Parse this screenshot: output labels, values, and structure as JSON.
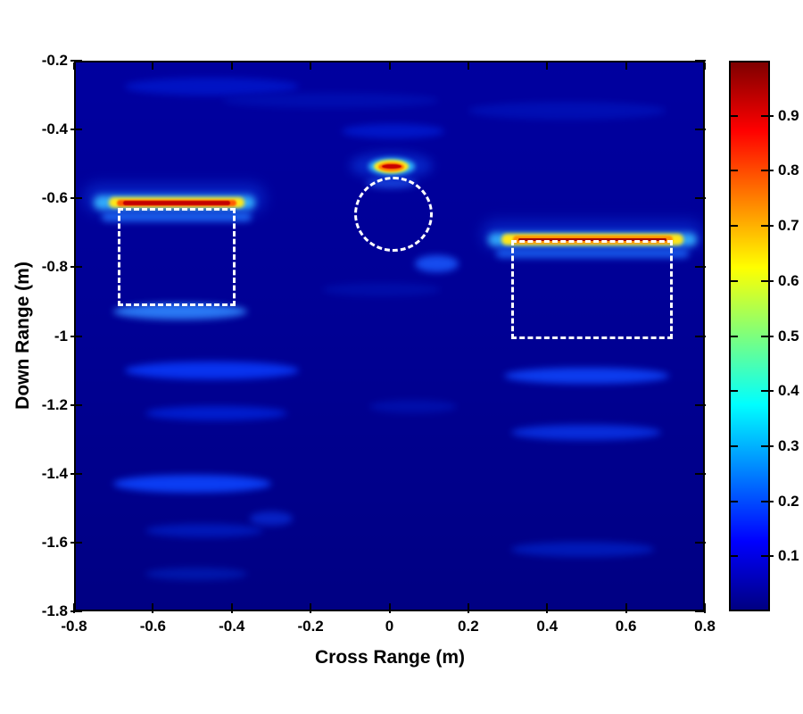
{
  "chart_data": {
    "type": "heatmap",
    "title": "",
    "xlabel": "Cross Range (m)",
    "ylabel": "Down Range (m)",
    "xlim": [
      -0.8,
      0.8
    ],
    "ylim": [
      -1.8,
      -0.2
    ],
    "grid": false,
    "background_color": "#000097",
    "x_ticks": {
      "values": [
        -0.8,
        -0.6,
        -0.4,
        -0.2,
        0,
        0.2,
        0.4,
        0.6,
        0.8
      ],
      "labels": [
        "-0.8",
        "-0.6",
        "-0.4",
        "-0.2",
        "0",
        "0.2",
        "0.4",
        "0.6",
        "0.8"
      ]
    },
    "y_ticks": {
      "values": [
        -0.2,
        -0.4,
        -0.6,
        -0.8,
        -1,
        -1.2,
        -1.4,
        -1.6,
        -1.8
      ],
      "labels": [
        "-0.2",
        "-0.4",
        "-0.6",
        "-0.8",
        "-1",
        "-1.2",
        "-1.4",
        "-1.6",
        "-1.8"
      ]
    },
    "colorbar": {
      "min": 0,
      "max": 1,
      "colormap": "jet",
      "tick_values": [
        0.9,
        0.8,
        0.7,
        0.6,
        0.5,
        0.4,
        0.3,
        0.2,
        0.1
      ],
      "tick_labels": [
        "0.9",
        "0.8",
        "0.7",
        "0.6",
        "0.5",
        "0.4",
        "0.3",
        "0.2",
        "0.1"
      ],
      "gradient_stops": [
        "#7f0000 0%",
        "#ff0000 12.5%",
        "#ff8000 25%",
        "#ffff00 37.5%",
        "#7dff7d 50%",
        "#00ffff 62.5%",
        "#0080ff 75%",
        "#0000ff 87.5%",
        "#000082 100%"
      ]
    },
    "targets": [
      {
        "name": "left-plate-return",
        "x_extent": [
          -0.72,
          -0.37
        ],
        "y": -0.61,
        "peak_intensity": 1.0
      },
      {
        "name": "center-point-return",
        "x": 0.0,
        "y": -0.51,
        "peak_intensity": 1.0
      },
      {
        "name": "right-plate-return",
        "x_extent": [
          0.27,
          0.76
        ],
        "y": -0.72,
        "peak_intensity": 0.95
      }
    ],
    "overlays": [
      {
        "shape": "rect",
        "name": "ground-truth-left-rect",
        "x0": -0.69,
        "x1": -0.39,
        "y0": -0.628,
        "y1": -0.912
      },
      {
        "shape": "circle",
        "name": "ground-truth-center-circle",
        "cx": 0.01,
        "cy": -0.645,
        "rx": 0.1,
        "ry": 0.109
      },
      {
        "shape": "rect",
        "name": "ground-truth-right-rect",
        "x0": 0.31,
        "x1": 0.718,
        "y0": -0.72,
        "y1": -1.01
      }
    ],
    "hot_layers": [
      {
        "x": -0.545,
        "y": -0.6,
        "w": 0.46,
        "h": 0.082,
        "c": "#0a35d8",
        "blur": 8,
        "o": 0.65,
        "pill": true
      },
      {
        "x": -0.545,
        "y": -0.613,
        "w": 0.41,
        "h": 0.042,
        "c": "#35b4ff",
        "blur": 4,
        "o": 0.95,
        "pill": true
      },
      {
        "x": -0.54,
        "y": -0.613,
        "w": 0.345,
        "h": 0.03,
        "c": "#ffe718",
        "blur": 2,
        "o": 1,
        "pill": true
      },
      {
        "x": -0.54,
        "y": -0.6135,
        "w": 0.305,
        "h": 0.019,
        "c": "#ff5a00",
        "blur": 1,
        "o": 1,
        "pill": true
      },
      {
        "x": -0.54,
        "y": -0.6135,
        "w": 0.272,
        "h": 0.0125,
        "c": "#c40000",
        "blur": 0.4,
        "o": 1,
        "pill": true
      },
      {
        "x": -0.54,
        "y": -0.655,
        "w": 0.38,
        "h": 0.026,
        "c": "#2277ff",
        "blur": 4,
        "o": 0.85,
        "pill": true
      },
      {
        "x": 0.005,
        "y": -0.505,
        "w": 0.21,
        "h": 0.075,
        "c": "#0a35d8",
        "blur": 6,
        "o": 0.7
      },
      {
        "x": 0.005,
        "y": -0.508,
        "w": 0.118,
        "h": 0.05,
        "c": "#35c8ff",
        "blur": 3,
        "o": 0.95
      },
      {
        "x": 0.005,
        "y": -0.508,
        "w": 0.088,
        "h": 0.038,
        "c": "#ffe718",
        "blur": 1.5,
        "o": 1
      },
      {
        "x": 0.005,
        "y": -0.508,
        "w": 0.066,
        "h": 0.026,
        "c": "#ff7700",
        "blur": 1,
        "o": 1
      },
      {
        "x": 0.005,
        "y": -0.5075,
        "w": 0.05,
        "h": 0.015,
        "c": "#c80000",
        "blur": 0.4,
        "o": 1
      },
      {
        "x": 0.515,
        "y": -0.705,
        "w": 0.56,
        "h": 0.082,
        "c": "#0a35d8",
        "blur": 8,
        "o": 0.6,
        "pill": true
      },
      {
        "x": 0.515,
        "y": -0.72,
        "w": 0.53,
        "h": 0.04,
        "c": "#35b4ff",
        "blur": 4,
        "o": 0.9,
        "pill": true
      },
      {
        "x": 0.515,
        "y": -0.72,
        "w": 0.46,
        "h": 0.033,
        "c": "#ffe718",
        "blur": 2,
        "o": 1,
        "pill": true
      },
      {
        "x": 0.515,
        "y": -0.72,
        "w": 0.405,
        "h": 0.021,
        "c": "#ff9100",
        "blur": 1,
        "o": 1,
        "pill": true
      },
      {
        "x": 0.515,
        "y": -0.7205,
        "w": 0.375,
        "h": 0.0085,
        "c": "#a50000",
        "blur": 0.3,
        "o": 1,
        "pill": true
      },
      {
        "x": 0.515,
        "y": -0.76,
        "w": 0.49,
        "h": 0.028,
        "c": "#1e6fff",
        "blur": 4,
        "o": 0.8,
        "pill": true
      }
    ],
    "noise_bands": [
      {
        "x": -0.45,
        "y": -0.275,
        "w": 0.44,
        "h": 0.05,
        "c": "#0015c8",
        "o": 0.9
      },
      {
        "x": -0.15,
        "y": -0.315,
        "w": 0.55,
        "h": 0.045,
        "c": "#0010b4",
        "o": 0.8
      },
      {
        "x": 0.45,
        "y": -0.345,
        "w": 0.5,
        "h": 0.05,
        "c": "#0013bb",
        "o": 0.75
      },
      {
        "x": 0.01,
        "y": -0.405,
        "w": 0.26,
        "h": 0.042,
        "c": "#001ad0",
        "o": 0.85
      },
      {
        "x": 0.005,
        "y": -0.555,
        "w": 0.13,
        "h": 0.032,
        "c": "#1e50e8",
        "o": 0.8
      },
      {
        "x": -0.53,
        "y": -0.928,
        "w": 0.34,
        "h": 0.046,
        "c": "#2f86ff",
        "o": 0.9
      },
      {
        "x": -0.45,
        "y": -1.1,
        "w": 0.44,
        "h": 0.052,
        "c": "#0a3cff",
        "o": 0.85
      },
      {
        "x": -0.44,
        "y": -1.225,
        "w": 0.36,
        "h": 0.042,
        "c": "#0024dd",
        "o": 0.8
      },
      {
        "x": -0.5,
        "y": -1.43,
        "w": 0.4,
        "h": 0.052,
        "c": "#0d44ff",
        "o": 0.9
      },
      {
        "x": -0.47,
        "y": -1.565,
        "w": 0.3,
        "h": 0.04,
        "c": "#0022cc",
        "o": 0.7
      },
      {
        "x": -0.49,
        "y": -1.69,
        "w": 0.26,
        "h": 0.036,
        "c": "#0020bb",
        "o": 0.7
      },
      {
        "x": 0.5,
        "y": -1.115,
        "w": 0.42,
        "h": 0.048,
        "c": "#0f47ff",
        "o": 0.85
      },
      {
        "x": 0.5,
        "y": -1.28,
        "w": 0.38,
        "h": 0.046,
        "c": "#0a38ee",
        "o": 0.8
      },
      {
        "x": 0.49,
        "y": -1.62,
        "w": 0.36,
        "h": 0.042,
        "c": "#0024cc",
        "o": 0.7
      },
      {
        "x": 0.12,
        "y": -0.79,
        "w": 0.11,
        "h": 0.05,
        "c": "#1a5aff",
        "o": 0.85
      },
      {
        "x": -0.02,
        "y": -0.865,
        "w": 0.3,
        "h": 0.04,
        "c": "#0012b0",
        "o": 0.7
      },
      {
        "x": -0.3,
        "y": -1.53,
        "w": 0.11,
        "h": 0.04,
        "c": "#0a30dd",
        "o": 0.7
      },
      {
        "x": 0.06,
        "y": -1.205,
        "w": 0.22,
        "h": 0.04,
        "c": "#0017bb",
        "o": 0.6
      }
    ]
  }
}
